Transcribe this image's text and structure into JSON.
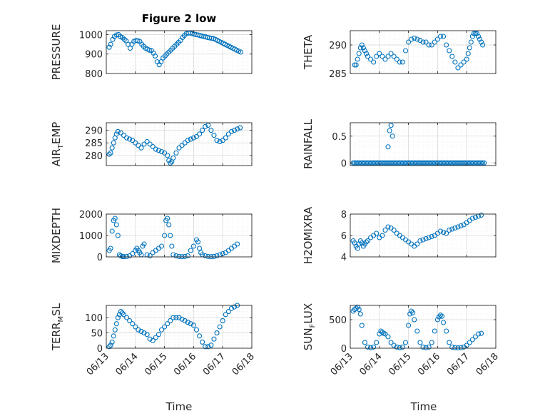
{
  "figure": {
    "title": "Figure 2 low",
    "xlabel": "Time"
  },
  "x_ticks": [
    "06/13",
    "06/14",
    "06/15",
    "06/16",
    "06/17",
    "06/18"
  ],
  "colors": {
    "marker": "#0072BD",
    "axes": "#262626",
    "grid": "#d9d9d9",
    "minor_grid": "#ebebeb"
  },
  "chart_data": [
    {
      "type": "scatter",
      "ylabel_main": "PRESSURE",
      "ylabel_sub": "",
      "xlim": [
        0,
        5
      ],
      "ylim": [
        800,
        1020
      ],
      "yticks": [
        800,
        900,
        1000
      ],
      "x": [
        0.1,
        0.15,
        0.22,
        0.28,
        0.35,
        0.42,
        0.48,
        0.55,
        0.62,
        0.68,
        0.75,
        0.82,
        0.88,
        0.95,
        1.02,
        1.08,
        1.15,
        1.22,
        1.28,
        1.35,
        1.42,
        1.48,
        1.55,
        1.62,
        1.68,
        1.75,
        1.82,
        1.88,
        1.95,
        2.02,
        2.08,
        2.15,
        2.22,
        2.28,
        2.35,
        2.42,
        2.48,
        2.55,
        2.62,
        2.68,
        2.75,
        2.82,
        2.88,
        2.95,
        3.02,
        3.08,
        3.15,
        3.22,
        3.28,
        3.35,
        3.42,
        3.48,
        3.55,
        3.62,
        3.68,
        3.75,
        3.82,
        3.88,
        3.95,
        4.02,
        4.08,
        4.15,
        4.22,
        4.28,
        4.35,
        4.42,
        4.48,
        4.55,
        4.62
      ],
      "y": [
        935,
        950,
        975,
        990,
        998,
        1000,
        990,
        985,
        975,
        968,
        950,
        930,
        950,
        965,
        970,
        968,
        965,
        950,
        940,
        930,
        925,
        920,
        918,
        905,
        890,
        860,
        845,
        860,
        880,
        890,
        900,
        910,
        920,
        930,
        940,
        950,
        960,
        970,
        985,
        995,
        1005,
        1008,
        1008,
        1005,
        1002,
        1000,
        998,
        995,
        993,
        990,
        988,
        985,
        983,
        981,
        980,
        975,
        970,
        965,
        960,
        955,
        950,
        945,
        940,
        935,
        930,
        925,
        920,
        915,
        910
      ]
    },
    {
      "type": "scatter",
      "ylabel_main": "THETA",
      "ylabel_sub": "",
      "xlim": [
        0,
        5
      ],
      "ylim": [
        285,
        292.5
      ],
      "yticks": [
        285,
        290
      ],
      "x": [
        0.15,
        0.2,
        0.25,
        0.3,
        0.35,
        0.4,
        0.45,
        0.5,
        0.55,
        0.6,
        0.7,
        0.8,
        0.9,
        1.0,
        1.1,
        1.2,
        1.3,
        1.4,
        1.5,
        1.6,
        1.7,
        1.8,
        1.9,
        2.0,
        2.1,
        2.2,
        2.3,
        2.4,
        2.5,
        2.6,
        2.7,
        2.8,
        2.9,
        3.0,
        3.1,
        3.2,
        3.3,
        3.4,
        3.5,
        3.6,
        3.7,
        3.8,
        3.9,
        4.0,
        4.05,
        4.1,
        4.15,
        4.2,
        4.25,
        4.3,
        4.35,
        4.4,
        4.45,
        4.5,
        4.55
      ],
      "y": [
        286.5,
        286.5,
        287.5,
        288.5,
        289.5,
        290.0,
        289.5,
        289.0,
        288.5,
        288.0,
        287.5,
        287.0,
        288.0,
        288.5,
        288.0,
        287.5,
        288.0,
        288.5,
        288.0,
        287.5,
        287.0,
        287.0,
        289.0,
        290.5,
        291.0,
        291.2,
        291.0,
        290.8,
        290.5,
        290.5,
        290.0,
        290.0,
        290.5,
        291.0,
        291.5,
        291.5,
        290.0,
        289.0,
        288.0,
        287.0,
        286.0,
        286.5,
        287.0,
        287.5,
        288.5,
        289.5,
        290.5,
        291.5,
        292.0,
        292.0,
        292.0,
        291.5,
        291.0,
        290.5,
        290.0
      ]
    },
    {
      "type": "scatter",
      "ylabel_main": "AIR",
      "ylabel_sub": "TEMP",
      "xlim": [
        0,
        5
      ],
      "ylim": [
        276,
        293
      ],
      "yticks": [
        280,
        285,
        290
      ],
      "x": [
        0.1,
        0.15,
        0.2,
        0.25,
        0.3,
        0.35,
        0.4,
        0.5,
        0.6,
        0.7,
        0.8,
        0.9,
        1.0,
        1.1,
        1.2,
        1.3,
        1.4,
        1.5,
        1.6,
        1.7,
        1.8,
        1.9,
        2.0,
        2.1,
        2.15,
        2.2,
        2.25,
        2.3,
        2.4,
        2.5,
        2.6,
        2.7,
        2.8,
        2.9,
        3.0,
        3.1,
        3.2,
        3.3,
        3.4,
        3.5,
        3.6,
        3.7,
        3.8,
        3.9,
        4.0,
        4.1,
        4.2,
        4.3,
        4.4,
        4.5,
        4.6
      ],
      "y": [
        280.5,
        281.0,
        283.0,
        285.0,
        287.0,
        288.5,
        289.5,
        289.0,
        288.0,
        287.0,
        286.5,
        286.0,
        285.0,
        284.0,
        283.0,
        284.5,
        285.5,
        284.5,
        283.5,
        282.5,
        282.0,
        281.5,
        281.0,
        280.0,
        278.0,
        277.0,
        277.5,
        279.0,
        281.0,
        283.0,
        284.0,
        285.0,
        286.0,
        286.5,
        287.0,
        287.5,
        288.5,
        290.0,
        291.5,
        292.0,
        290.0,
        288.0,
        286.0,
        285.5,
        286.0,
        287.0,
        288.5,
        289.5,
        290.0,
        290.5,
        291.0
      ]
    },
    {
      "type": "scatter",
      "ylabel_main": "RAINFALL",
      "ylabel_sub": "",
      "xlim": [
        0,
        5
      ],
      "ylim": [
        -0.05,
        0.75
      ],
      "yticks": [
        0,
        0.5
      ],
      "baseline_x_start": 0.1,
      "baseline_x_end": 4.6,
      "baseline_step": 0.05,
      "baseline_y": 0,
      "x": [
        1.3,
        1.35,
        1.4,
        1.45
      ],
      "y": [
        0.3,
        0.6,
        0.7,
        0.5
      ]
    },
    {
      "type": "scatter",
      "ylabel_main": "MIXDEPTH",
      "ylabel_sub": "",
      "xlim": [
        0,
        5
      ],
      "ylim": [
        0,
        2000
      ],
      "yticks": [
        0,
        1000,
        2000
      ],
      "x": [
        0.1,
        0.15,
        0.2,
        0.25,
        0.3,
        0.35,
        0.4,
        0.45,
        0.5,
        0.55,
        0.6,
        0.7,
        0.8,
        0.9,
        1.0,
        1.05,
        1.1,
        1.15,
        1.2,
        1.25,
        1.3,
        1.4,
        1.5,
        1.6,
        1.7,
        1.8,
        1.9,
        2.0,
        2.05,
        2.1,
        2.15,
        2.2,
        2.25,
        2.3,
        2.4,
        2.5,
        2.6,
        2.7,
        2.8,
        2.9,
        3.0,
        3.1,
        3.15,
        3.2,
        3.25,
        3.3,
        3.4,
        3.5,
        3.6,
        3.7,
        3.8,
        3.9,
        4.0,
        4.1,
        4.2,
        4.3,
        4.4,
        4.5
      ],
      "y": [
        300,
        400,
        1200,
        1700,
        1800,
        1500,
        1000,
        100,
        50,
        20,
        10,
        20,
        50,
        150,
        300,
        400,
        300,
        200,
        100,
        500,
        600,
        100,
        50,
        200,
        300,
        400,
        500,
        1000,
        1700,
        1800,
        1500,
        1000,
        500,
        100,
        50,
        20,
        10,
        20,
        50,
        300,
        500,
        800,
        700,
        400,
        200,
        100,
        50,
        20,
        10,
        20,
        50,
        100,
        150,
        200,
        300,
        400,
        500,
        600
      ]
    },
    {
      "type": "scatter",
      "ylabel_main": "H2OMIXRA",
      "ylabel_sub": "",
      "xlim": [
        0,
        5
      ],
      "ylim": [
        4,
        8
      ],
      "yticks": [
        4,
        6,
        8
      ],
      "x": [
        0.1,
        0.15,
        0.2,
        0.25,
        0.3,
        0.35,
        0.4,
        0.45,
        0.5,
        0.55,
        0.6,
        0.7,
        0.8,
        0.9,
        1.0,
        1.1,
        1.2,
        1.3,
        1.4,
        1.5,
        1.6,
        1.7,
        1.8,
        1.9,
        2.0,
        2.1,
        2.2,
        2.3,
        2.4,
        2.5,
        2.6,
        2.7,
        2.8,
        2.9,
        3.0,
        3.1,
        3.2,
        3.3,
        3.4,
        3.5,
        3.6,
        3.7,
        3.8,
        3.9,
        4.0,
        4.1,
        4.2,
        4.3,
        4.4,
        4.5
      ],
      "y": [
        5.5,
        5.3,
        5.0,
        4.8,
        5.2,
        5.5,
        5.3,
        5.0,
        5.2,
        5.4,
        5.5,
        5.8,
        6.0,
        6.2,
        5.8,
        6.0,
        6.5,
        6.8,
        6.7,
        6.5,
        6.2,
        6.0,
        5.8,
        5.6,
        5.4,
        5.2,
        5.0,
        5.2,
        5.5,
        5.6,
        5.7,
        5.8,
        5.9,
        6.0,
        6.2,
        6.4,
        6.3,
        6.2,
        6.5,
        6.6,
        6.7,
        6.8,
        6.9,
        7.0,
        7.2,
        7.4,
        7.6,
        7.7,
        7.8,
        7.9
      ]
    },
    {
      "type": "scatter",
      "ylabel_main": "TERR",
      "ylabel_sub": "MSL",
      "xlim": [
        0,
        5
      ],
      "ylim": [
        0,
        140
      ],
      "yticks": [
        0,
        50,
        100
      ],
      "x": [
        0.1,
        0.15,
        0.2,
        0.25,
        0.3,
        0.35,
        0.4,
        0.45,
        0.5,
        0.55,
        0.6,
        0.7,
        0.8,
        0.9,
        1.0,
        1.1,
        1.2,
        1.3,
        1.4,
        1.5,
        1.6,
        1.7,
        1.8,
        1.9,
        2.0,
        2.1,
        2.2,
        2.3,
        2.4,
        2.5,
        2.6,
        2.7,
        2.8,
        2.9,
        3.0,
        3.1,
        3.2,
        3.3,
        3.4,
        3.5,
        3.6,
        3.7,
        3.8,
        3.9,
        4.0,
        4.1,
        4.2,
        4.3,
        4.4,
        4.5
      ],
      "y": [
        5,
        10,
        20,
        40,
        60,
        80,
        100,
        110,
        120,
        115,
        110,
        100,
        90,
        80,
        70,
        60,
        55,
        50,
        45,
        30,
        25,
        35,
        45,
        60,
        70,
        80,
        90,
        100,
        100,
        100,
        95,
        90,
        85,
        80,
        75,
        60,
        40,
        20,
        5,
        5,
        10,
        30,
        50,
        70,
        90,
        110,
        120,
        130,
        135,
        140
      ]
    },
    {
      "type": "scatter",
      "ylabel_main": "SUN",
      "ylabel_sub": "FLUX",
      "xlim": [
        0,
        5
      ],
      "ylim": [
        0,
        750
      ],
      "yticks": [
        0,
        500
      ],
      "x": [
        0.1,
        0.15,
        0.2,
        0.25,
        0.3,
        0.35,
        0.4,
        0.5,
        0.6,
        0.7,
        0.8,
        0.9,
        1.0,
        1.05,
        1.1,
        1.15,
        1.2,
        1.3,
        1.4,
        1.5,
        1.6,
        1.7,
        1.8,
        1.9,
        2.0,
        2.05,
        2.1,
        2.15,
        2.2,
        2.3,
        2.4,
        2.5,
        2.6,
        2.7,
        2.8,
        2.9,
        3.0,
        3.05,
        3.1,
        3.15,
        3.2,
        3.3,
        3.4,
        3.5,
        3.6,
        3.7,
        3.8,
        3.9,
        4.0,
        4.1,
        4.2,
        4.3,
        4.4,
        4.5
      ],
      "y": [
        650,
        680,
        700,
        720,
        680,
        600,
        400,
        100,
        20,
        10,
        20,
        100,
        250,
        300,
        280,
        260,
        250,
        200,
        100,
        50,
        20,
        10,
        20,
        100,
        400,
        600,
        650,
        620,
        500,
        300,
        100,
        20,
        10,
        20,
        100,
        300,
        500,
        550,
        580,
        560,
        450,
        300,
        100,
        20,
        10,
        5,
        10,
        20,
        50,
        100,
        150,
        200,
        250,
        260
      ]
    }
  ]
}
